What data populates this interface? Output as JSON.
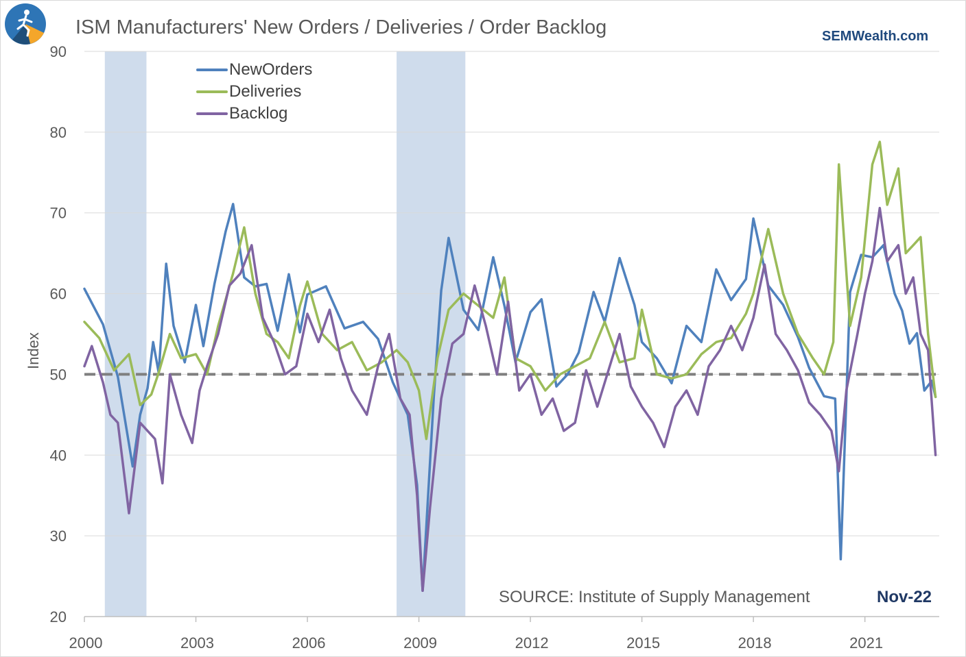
{
  "brand": "SEMWealth.com",
  "source_note": "SOURCE:  Institute of Supply Management",
  "date_label": "Nov-22",
  "colors": {
    "new_orders": "#4f81bd",
    "deliveries": "#9bbb59",
    "backlog": "#8064a2",
    "recession": "#cfdcec",
    "reference": "#7f7f7f",
    "grid": "#d9d9d9"
  },
  "logo": {
    "icon": "semwealth-runner-logo-icon"
  },
  "chart_data": {
    "type": "line",
    "title": "ISM Manufacturers' New Orders / Deliveries / Order Backlog",
    "xlabel": "",
    "ylabel": "Index",
    "xlim": [
      2000.0,
      2023.0
    ],
    "ylim": [
      20,
      90
    ],
    "yticks": [
      20,
      30,
      40,
      50,
      60,
      70,
      80,
      90
    ],
    "xticks": [
      2000,
      2003,
      2006,
      2009,
      2012,
      2015,
      2018,
      2021
    ],
    "grid": "horizontal",
    "legend_position": "top-left",
    "reference_line": 50,
    "recessions": [
      [
        2000.55,
        2001.67
      ],
      [
        2008.4,
        2010.25
      ]
    ],
    "series": [
      {
        "name": "NewOrders",
        "x": [
          2000.0,
          2000.5,
          2000.9,
          2001.3,
          2001.5,
          2001.7,
          2001.85,
          2002.0,
          2002.2,
          2002.4,
          2002.7,
          2003.0,
          2003.2,
          2003.5,
          2003.8,
          2004.0,
          2004.3,
          2004.6,
          2004.9,
          2005.2,
          2005.5,
          2005.8,
          2006.0,
          2006.5,
          2007.0,
          2007.5,
          2007.9,
          2008.3,
          2008.7,
          2008.95,
          2009.1,
          2009.4,
          2009.6,
          2009.8,
          2010.2,
          2010.6,
          2011.0,
          2011.3,
          2011.6,
          2012.0,
          2012.3,
          2012.7,
          2013.0,
          2013.3,
          2013.7,
          2014.0,
          2014.4,
          2014.8,
          2015.0,
          2015.4,
          2015.8,
          2016.2,
          2016.6,
          2017.0,
          2017.4,
          2017.8,
          2018.0,
          2018.4,
          2018.8,
          2019.2,
          2019.5,
          2019.9,
          2020.2,
          2020.35,
          2020.6,
          2020.9,
          2021.2,
          2021.5,
          2021.8,
          2022.0,
          2022.2,
          2022.4,
          2022.6,
          2022.8,
          2022.9
        ],
        "values": [
          60.6,
          56.2,
          49.7,
          38.6,
          45.0,
          48.3,
          54.0,
          50.2,
          63.7,
          56.0,
          51.5,
          58.6,
          53.5,
          61.2,
          67.7,
          71.1,
          62.0,
          60.9,
          61.2,
          55.4,
          62.4,
          55.2,
          59.9,
          60.9,
          55.7,
          56.5,
          54.4,
          49.0,
          45.0,
          36.3,
          23.2,
          47.1,
          60.4,
          66.9,
          58.0,
          55.5,
          64.5,
          58.5,
          51.5,
          57.7,
          59.3,
          48.5,
          50.0,
          52.7,
          60.2,
          56.5,
          64.4,
          58.6,
          54.0,
          52.0,
          48.9,
          56.0,
          54.0,
          63.0,
          59.2,
          61.8,
          69.3,
          61.0,
          58.6,
          54.6,
          50.8,
          47.3,
          47.0,
          27.1,
          60.2,
          64.8,
          64.5,
          66.0,
          60.0,
          57.9,
          53.8,
          55.1,
          48.0,
          49.2,
          47.2
        ]
      },
      {
        "name": "Deliveries",
        "x": [
          2000.0,
          2000.4,
          2000.8,
          2001.2,
          2001.5,
          2001.8,
          2002.0,
          2002.3,
          2002.6,
          2003.0,
          2003.3,
          2003.6,
          2004.0,
          2004.3,
          2004.6,
          2004.9,
          2005.2,
          2005.5,
          2005.8,
          2006.0,
          2006.4,
          2006.8,
          2007.2,
          2007.6,
          2008.0,
          2008.4,
          2008.7,
          2009.0,
          2009.2,
          2009.5,
          2009.8,
          2010.2,
          2010.6,
          2011.0,
          2011.3,
          2011.6,
          2012.0,
          2012.4,
          2012.8,
          2013.2,
          2013.6,
          2014.0,
          2014.4,
          2014.8,
          2015.0,
          2015.4,
          2015.8,
          2016.2,
          2016.6,
          2017.0,
          2017.4,
          2017.8,
          2018.0,
          2018.4,
          2018.8,
          2019.2,
          2019.6,
          2019.9,
          2020.15,
          2020.3,
          2020.6,
          2020.9,
          2021.2,
          2021.4,
          2021.6,
          2021.9,
          2022.1,
          2022.3,
          2022.5,
          2022.7,
          2022.9
        ],
        "values": [
          56.5,
          54.5,
          50.5,
          52.5,
          46.2,
          47.5,
          50.2,
          55.0,
          52.0,
          52.5,
          50.0,
          56.0,
          62.5,
          68.2,
          60.0,
          55.0,
          54.0,
          52.0,
          58.5,
          61.5,
          55.0,
          53.0,
          54.0,
          50.5,
          51.5,
          53.0,
          51.5,
          48.0,
          42.0,
          52.0,
          58.0,
          60.0,
          58.5,
          57.0,
          62.0,
          52.0,
          51.0,
          48.0,
          50.0,
          51.0,
          52.0,
          56.5,
          51.5,
          52.0,
          58.0,
          50.0,
          49.5,
          50.0,
          52.5,
          54.0,
          54.5,
          57.5,
          60.0,
          68.0,
          60.0,
          55.0,
          52.0,
          50.0,
          54.0,
          76.0,
          56.0,
          62.0,
          76.0,
          78.8,
          71.0,
          75.5,
          65.0,
          66.0,
          67.0,
          55.0,
          47.2
        ]
      },
      {
        "name": "Backlog",
        "x": [
          2000.0,
          2000.2,
          2000.5,
          2000.7,
          2000.9,
          2001.2,
          2001.5,
          2001.7,
          2001.9,
          2002.1,
          2002.3,
          2002.6,
          2002.9,
          2003.1,
          2003.3,
          2003.6,
          2003.9,
          2004.2,
          2004.5,
          2004.8,
          2005.1,
          2005.4,
          2005.7,
          2006.0,
          2006.3,
          2006.6,
          2006.9,
          2007.2,
          2007.6,
          2007.9,
          2008.2,
          2008.5,
          2008.75,
          2008.95,
          2009.1,
          2009.3,
          2009.6,
          2009.9,
          2010.2,
          2010.5,
          2010.8,
          2011.1,
          2011.4,
          2011.7,
          2012.0,
          2012.3,
          2012.6,
          2012.9,
          2013.2,
          2013.5,
          2013.8,
          2014.1,
          2014.4,
          2014.7,
          2015.0,
          2015.3,
          2015.6,
          2015.9,
          2016.2,
          2016.5,
          2016.8,
          2017.1,
          2017.4,
          2017.7,
          2018.0,
          2018.3,
          2018.6,
          2018.9,
          2019.2,
          2019.5,
          2019.8,
          2020.1,
          2020.3,
          2020.5,
          2020.8,
          2021.0,
          2021.2,
          2021.4,
          2021.6,
          2021.9,
          2022.1,
          2022.3,
          2022.5,
          2022.7,
          2022.9
        ],
        "values": [
          51.0,
          53.5,
          49.0,
          45.0,
          44.0,
          32.8,
          44.0,
          43.0,
          42.0,
          36.5,
          50.0,
          45.0,
          41.5,
          48.0,
          51.0,
          55.0,
          61.0,
          62.5,
          66.0,
          57.0,
          54.0,
          50.0,
          51.0,
          57.5,
          54.0,
          58.0,
          52.0,
          48.0,
          45.0,
          51.0,
          55.0,
          47.0,
          45.0,
          35.0,
          23.2,
          33.5,
          47.0,
          53.8,
          55.0,
          61.0,
          56.0,
          50.0,
          59.0,
          48.0,
          50.0,
          45.0,
          47.0,
          43.0,
          44.0,
          50.5,
          46.0,
          50.5,
          55.0,
          48.5,
          46.0,
          44.0,
          41.0,
          46.0,
          48.0,
          45.0,
          51.0,
          53.0,
          56.0,
          53.0,
          57.0,
          63.6,
          55.0,
          53.0,
          50.5,
          46.5,
          45.0,
          43.0,
          38.0,
          48.0,
          55.0,
          60.0,
          64.0,
          70.6,
          64.0,
          66.0,
          60.0,
          62.0,
          55.0,
          53.0,
          40.0
        ]
      }
    ]
  }
}
